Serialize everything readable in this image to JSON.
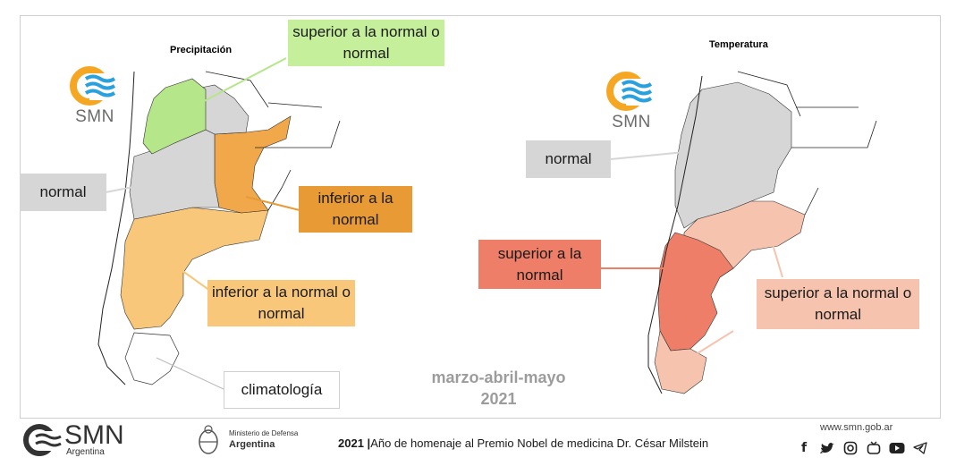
{
  "left_panel": {
    "title": "Precipitación",
    "logo_text": "SMN",
    "callouts": {
      "upper": "superior a la normal o normal",
      "normal": "normal",
      "below": "inferior a la normal",
      "below_or_normal": "inferior a la normal o normal",
      "climatology": "climatología"
    }
  },
  "right_panel": {
    "title": "Temperatura",
    "logo_text": "SMN",
    "callouts": {
      "normal": "normal",
      "above": "superior a la normal",
      "above_or_normal": "superior a la normal o normal"
    }
  },
  "season": {
    "months": "marzo-abril-mayo",
    "year": "2021"
  },
  "footer": {
    "smn_logo": "SMN",
    "smn_sub": "Argentina",
    "ministerio_line1": "Ministerio de Defensa",
    "ministerio_line2": "Argentina",
    "homage_year": "2021",
    "homage_text": "Año de homenaje al Premio Nobel de medicina Dr. César Milstein",
    "url": "www.smn.gob.ar",
    "social_icons": [
      "facebook-icon",
      "twitter-icon",
      "instagram-icon",
      "tv-icon",
      "youtube-icon",
      "telegram-icon"
    ]
  },
  "colors": {
    "wet_green": "#b5e68a",
    "callout_green": "#c6ef9c",
    "normal_gray": "#d6d6d6",
    "dry_orange": "#e89a35",
    "dry_light": "#f8c77a",
    "warm_red": "#ee7e68",
    "warm_light": "#f6c3ae",
    "logo_orange": "#f5a623",
    "logo_blue": "#2aa1dc"
  }
}
